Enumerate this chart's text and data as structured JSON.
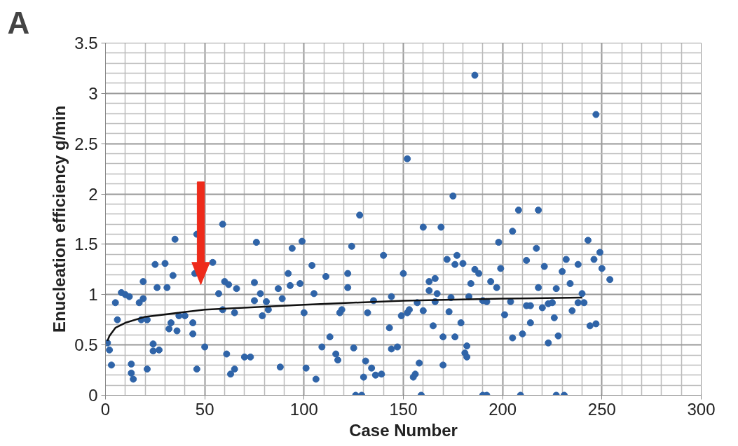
{
  "chart_data": {
    "type": "scatter",
    "title": "A",
    "xlabel": "Case Number",
    "ylabel": "Enucleation efficiency g/min",
    "xlim": [
      0,
      300
    ],
    "xticks": [
      0,
      50,
      100,
      150,
      200,
      250,
      300
    ],
    "ylim": [
      0,
      3.5
    ],
    "yticks": [
      0,
      0.5,
      1,
      1.5,
      2,
      2.5,
      3,
      3.5
    ],
    "grid": true,
    "marker": "circle",
    "series": [
      {
        "color": "#2f64a8",
        "x": [
          59,
          35,
          46,
          76,
          25,
          30,
          54,
          34,
          45,
          19,
          26,
          31,
          60,
          62,
          66,
          75,
          8,
          10,
          12,
          57,
          5,
          17,
          19,
          75,
          59,
          65,
          6,
          18,
          21,
          37,
          40,
          33,
          44,
          32,
          36,
          44,
          1,
          2,
          24,
          24,
          27,
          50,
          61,
          70,
          73,
          3,
          13,
          13,
          14,
          21,
          46,
          65,
          63,
          128,
          94,
          99,
          124,
          140,
          104,
          92,
          111,
          122,
          150,
          87,
          93,
          98,
          122,
          78,
          105,
          89,
          144,
          81,
          135,
          82,
          79,
          100,
          119,
          118,
          132,
          149,
          152,
          143,
          113,
          109,
          125,
          144,
          147,
          116,
          117,
          131,
          88,
          101,
          134,
          106,
          130,
          136,
          139,
          126,
          129,
          152,
          186,
          247,
          175,
          160,
          169,
          208,
          218,
          205,
          198,
          217,
          172,
          177,
          176,
          180,
          212,
          221,
          232,
          186,
          188,
          199,
          230,
          163,
          166,
          184,
          194,
          197,
          163,
          167,
          218,
          227,
          174,
          183,
          157,
          166,
          190,
          192,
          204,
          212,
          214,
          220,
          223,
          225,
          153,
          160,
          173,
          201,
          226,
          165,
          179,
          214,
          170,
          176,
          205,
          210,
          228,
          223,
          182,
          181,
          182,
          158,
          170,
          156,
          155,
          159,
          190,
          192,
          209,
          227,
          231,
          243,
          249,
          246,
          238,
          250,
          234,
          254,
          240,
          238,
          241,
          235,
          244,
          247
        ],
        "values": [
          1.7,
          1.55,
          1.6,
          1.52,
          1.3,
          1.31,
          1.32,
          1.19,
          1.21,
          1.13,
          1.07,
          1.07,
          1.13,
          1.1,
          1.06,
          1.12,
          1.02,
          1.0,
          0.98,
          1.01,
          0.92,
          0.92,
          0.96,
          0.94,
          0.85,
          0.82,
          0.75,
          0.75,
          0.75,
          0.79,
          0.79,
          0.72,
          0.72,
          0.66,
          0.64,
          0.61,
          0.52,
          0.45,
          0.51,
          0.44,
          0.45,
          0.48,
          0.41,
          0.38,
          0.38,
          0.3,
          0.31,
          0.22,
          0.16,
          0.26,
          0.26,
          0.26,
          0.21,
          1.79,
          1.46,
          1.53,
          1.48,
          1.39,
          1.29,
          1.21,
          1.18,
          1.21,
          1.21,
          1.06,
          1.09,
          1.11,
          1.07,
          1.01,
          1.01,
          0.96,
          0.98,
          0.93,
          0.94,
          0.85,
          0.79,
          0.82,
          0.85,
          0.82,
          0.82,
          0.79,
          0.82,
          0.67,
          0.58,
          0.48,
          0.47,
          0.46,
          0.48,
          0.41,
          0.35,
          0.34,
          0.28,
          0.27,
          0.27,
          0.16,
          0.18,
          0.2,
          0.21,
          0,
          0,
          2.35,
          3.18,
          2.79,
          1.98,
          1.67,
          1.67,
          1.84,
          1.84,
          1.63,
          1.52,
          1.46,
          1.35,
          1.39,
          1.3,
          1.31,
          1.34,
          1.28,
          1.35,
          1.25,
          1.21,
          1.26,
          1.23,
          1.13,
          1.16,
          1.11,
          1.13,
          1.07,
          1.04,
          1.01,
          1.07,
          1.06,
          0.97,
          0.98,
          0.92,
          0.93,
          0.94,
          0.93,
          0.93,
          0.89,
          0.89,
          0.87,
          0.91,
          0.92,
          0.85,
          0.84,
          0.83,
          0.8,
          0.77,
          0.69,
          0.72,
          0.72,
          0.58,
          0.58,
          0.57,
          0.61,
          0.59,
          0.52,
          0.49,
          0.42,
          0.38,
          0.32,
          0.3,
          0.21,
          0.18,
          0,
          0,
          0,
          0,
          0,
          0,
          1.54,
          1.42,
          1.35,
          1.3,
          1.26,
          1.11,
          1.15,
          1.01,
          0.92,
          0.92,
          0.84,
          0.69,
          0.71
        ]
      },
      {
        "type": "line",
        "color": "#111111",
        "marker": "none",
        "line_style": "solid",
        "x": [
          1,
          2,
          5,
          10,
          20,
          50,
          100,
          150,
          200,
          240
        ],
        "values": [
          0.54,
          0.59,
          0.67,
          0.72,
          0.78,
          0.85,
          0.9,
          0.94,
          0.96,
          0.97
        ]
      }
    ]
  }
}
